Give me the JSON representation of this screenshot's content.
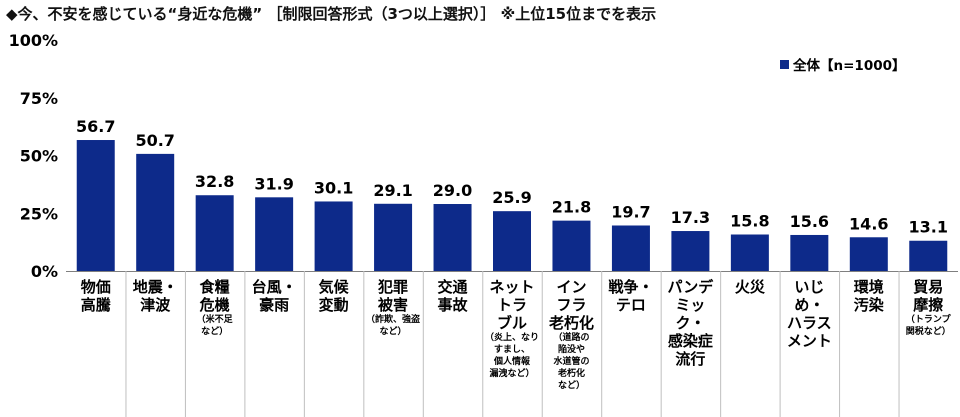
{
  "title": "◆今、不安を感じている“身近な危機” ［制限回答形式（3つ以上選択）］ ※上位15位までを表示",
  "legend": "全体【n=1000】",
  "colors": {
    "bar": "#0d2a8a",
    "axis": "#7f7f7f",
    "divider": "#bfbfbf"
  },
  "chart_data": {
    "type": "bar",
    "title": "◆今、不安を感じている“身近な危機” ［制限回答形式（3つ以上選択）］ ※上位15位までを表示",
    "ylim": [
      0,
      100
    ],
    "yticks": [
      "0%",
      "25%",
      "50%",
      "75%",
      "100%"
    ],
    "grid": false,
    "legend_position": "top-right",
    "series": [
      {
        "name": "全体【n=1000】",
        "values": [
          56.7,
          50.7,
          32.8,
          31.9,
          30.1,
          29.1,
          29.0,
          25.9,
          21.8,
          19.7,
          17.3,
          15.8,
          15.6,
          14.6,
          13.1
        ]
      }
    ],
    "value_labels": [
      "56.7",
      "50.7",
      "32.8",
      "31.9",
      "30.1",
      "29.1",
      "29.0",
      "25.9",
      "21.8",
      "19.7",
      "17.3",
      "15.8",
      "15.6",
      "14.6",
      "13.1"
    ],
    "categories": [
      {
        "lines": [
          "物価",
          "高騰"
        ],
        "sub": []
      },
      {
        "lines": [
          "地震・",
          "津波"
        ],
        "sub": []
      },
      {
        "lines": [
          "食糧",
          "危機"
        ],
        "sub": [
          "（米不足",
          "など）"
        ]
      },
      {
        "lines": [
          "台風・",
          "豪雨"
        ],
        "sub": []
      },
      {
        "lines": [
          "気候",
          "変動"
        ],
        "sub": []
      },
      {
        "lines": [
          "犯罪",
          "被害"
        ],
        "sub": [
          "（詐欺、強盗",
          "など）"
        ]
      },
      {
        "lines": [
          "交通",
          "事故"
        ],
        "sub": []
      },
      {
        "lines": [
          "ネット",
          "トラ",
          "ブル"
        ],
        "sub": [
          "（炎上、なり",
          "すまし、",
          "個人情報",
          "漏洩など）"
        ]
      },
      {
        "lines": [
          "イン",
          "フラ",
          "老朽化"
        ],
        "sub": [
          "（道路の",
          "陥没や",
          "水道管の",
          "老朽化",
          "など）"
        ]
      },
      {
        "lines": [
          "戦争・",
          "テロ"
        ],
        "sub": []
      },
      {
        "lines": [
          "パンデ",
          "ミッ",
          "ク・",
          "感染症",
          "流行"
        ],
        "sub": []
      },
      {
        "lines": [
          "火災"
        ],
        "sub": []
      },
      {
        "lines": [
          "いじ",
          "め・",
          "ハラス",
          "メント"
        ],
        "sub": []
      },
      {
        "lines": [
          "環境",
          "汚染"
        ],
        "sub": []
      },
      {
        "lines": [
          "貿易",
          "摩擦"
        ],
        "sub": [
          "（トランプ",
          "関税など）"
        ]
      }
    ]
  }
}
